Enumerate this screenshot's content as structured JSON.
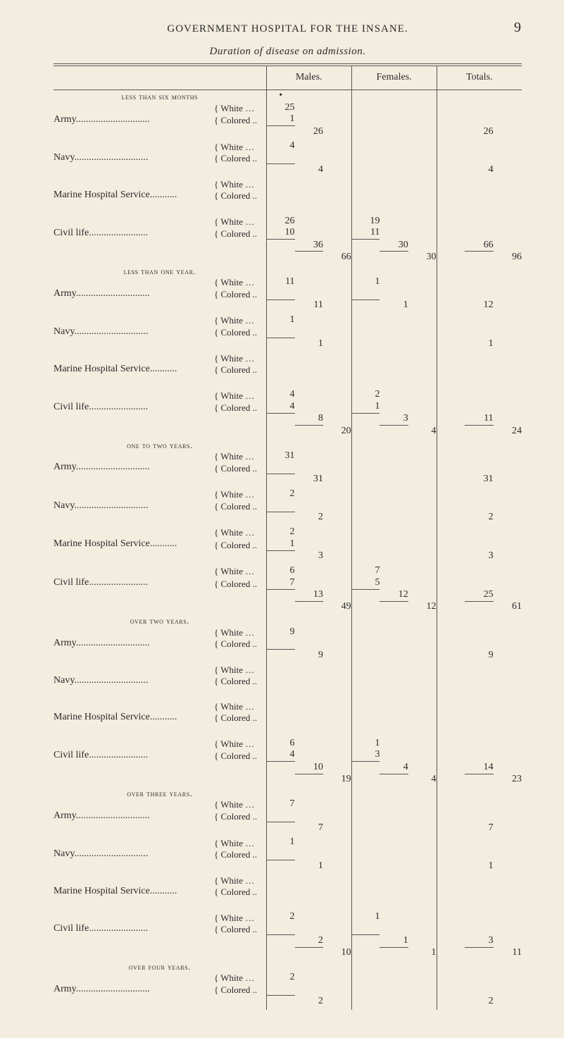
{
  "page": {
    "running_title": "GOVERNMENT HOSPITAL FOR THE INSANE.",
    "page_number": "9",
    "table_title": "Duration of disease on admission."
  },
  "columns": {
    "males": "Males.",
    "females": "Females.",
    "totals": "Totals."
  },
  "race": {
    "white": "White …",
    "colored": "Colored .."
  },
  "sources": {
    "army": "Army",
    "navy": "Navy",
    "marine": "Marine Hospital Service",
    "civil": "Civil life"
  },
  "sections": [
    {
      "caption": "less than six months",
      "rows": [
        {
          "src": "army",
          "white": {
            "m_a": "25"
          },
          "colored": {
            "m_a": "1"
          },
          "sub": {
            "m_b": "26",
            "t_b": "26"
          }
        },
        {
          "src": "navy",
          "white": {
            "m_a": "4"
          },
          "colored": {},
          "sub": {
            "m_b": "4",
            "t_b": "4"
          }
        },
        {
          "src": "marine",
          "white": {},
          "colored": {},
          "sub": {}
        },
        {
          "src": "civil",
          "white": {
            "m_a": "26",
            "f_a": "19"
          },
          "colored": {
            "m_a": "10",
            "f_a": "11"
          },
          "sub": {
            "m_b": "36",
            "f_b": "30",
            "t_b": "66"
          },
          "section_total": {
            "m_c": "66",
            "f_c": "30",
            "t_c": "96"
          }
        }
      ]
    },
    {
      "caption": "less than one year.",
      "rows": [
        {
          "src": "army",
          "white": {
            "m_a": "11",
            "f_a": "1"
          },
          "colored": {},
          "sub": {
            "m_b": "11",
            "f_b": "1",
            "t_b": "12"
          }
        },
        {
          "src": "navy",
          "white": {
            "m_a": "1"
          },
          "colored": {},
          "sub": {
            "m_b": "1",
            "t_b": "1"
          }
        },
        {
          "src": "marine",
          "white": {},
          "colored": {},
          "sub": {}
        },
        {
          "src": "civil",
          "white": {
            "m_a": "4",
            "f_a": "2"
          },
          "colored": {
            "m_a": "4",
            "f_a": "1"
          },
          "sub": {
            "m_b": "8",
            "f_b": "3",
            "t_b": "11"
          },
          "section_total": {
            "m_c": "20",
            "f_c": "4",
            "t_c": "24"
          }
        }
      ]
    },
    {
      "caption": "one to two years.",
      "rows": [
        {
          "src": "army",
          "white": {
            "m_a": "31"
          },
          "colored": {},
          "sub": {
            "m_b": "31",
            "t_b": "31"
          }
        },
        {
          "src": "navy",
          "white": {
            "m_a": "2"
          },
          "colored": {},
          "sub": {
            "m_b": "2",
            "t_b": "2"
          }
        },
        {
          "src": "marine",
          "white": {
            "m_a": "2"
          },
          "colored": {
            "m_a": "1"
          },
          "sub": {
            "m_b": "3",
            "t_b": "3"
          }
        },
        {
          "src": "civil",
          "white": {
            "m_a": "6",
            "f_a": "7"
          },
          "colored": {
            "m_a": "7",
            "f_a": "5"
          },
          "sub": {
            "m_b": "13",
            "f_b": "12",
            "t_b": "25"
          },
          "section_total": {
            "m_c": "49",
            "f_c": "12",
            "t_c": "61"
          }
        }
      ]
    },
    {
      "caption": "over two years.",
      "rows": [
        {
          "src": "army",
          "white": {
            "m_a": "9"
          },
          "colored": {},
          "sub": {
            "m_b": "9",
            "t_b": "9"
          }
        },
        {
          "src": "navy",
          "white": {},
          "colored": {},
          "sub": {}
        },
        {
          "src": "marine",
          "white": {},
          "colored": {},
          "sub": {}
        },
        {
          "src": "civil",
          "white": {
            "m_a": "6",
            "f_a": "1"
          },
          "colored": {
            "m_a": "4",
            "f_a": "3"
          },
          "sub": {
            "m_b": "10",
            "f_b": "4",
            "t_b": "14"
          },
          "section_total": {
            "m_c": "19",
            "f_c": "4",
            "t_c": "23"
          }
        }
      ]
    },
    {
      "caption": "over three years.",
      "rows": [
        {
          "src": "army",
          "white": {
            "m_a": "7"
          },
          "colored": {},
          "sub": {
            "m_b": "7",
            "t_b": "7"
          }
        },
        {
          "src": "navy",
          "white": {
            "m_a": "1"
          },
          "colored": {},
          "sub": {
            "m_b": "1",
            "t_b": "1"
          }
        },
        {
          "src": "marine",
          "white": {},
          "colored": {},
          "sub": {}
        },
        {
          "src": "civil",
          "white": {
            "m_a": "2",
            "f_a": "1"
          },
          "colored": {},
          "sub": {
            "m_b": "2",
            "f_b": "1",
            "t_b": "3"
          },
          "section_total": {
            "m_c": "10",
            "f_c": "1",
            "t_c": "11"
          }
        }
      ]
    },
    {
      "caption": "over four years.",
      "rows": [
        {
          "src": "army",
          "white": {
            "m_a": "2"
          },
          "colored": {},
          "sub": {
            "m_b": "2",
            "t_b": "2"
          }
        }
      ]
    }
  ]
}
